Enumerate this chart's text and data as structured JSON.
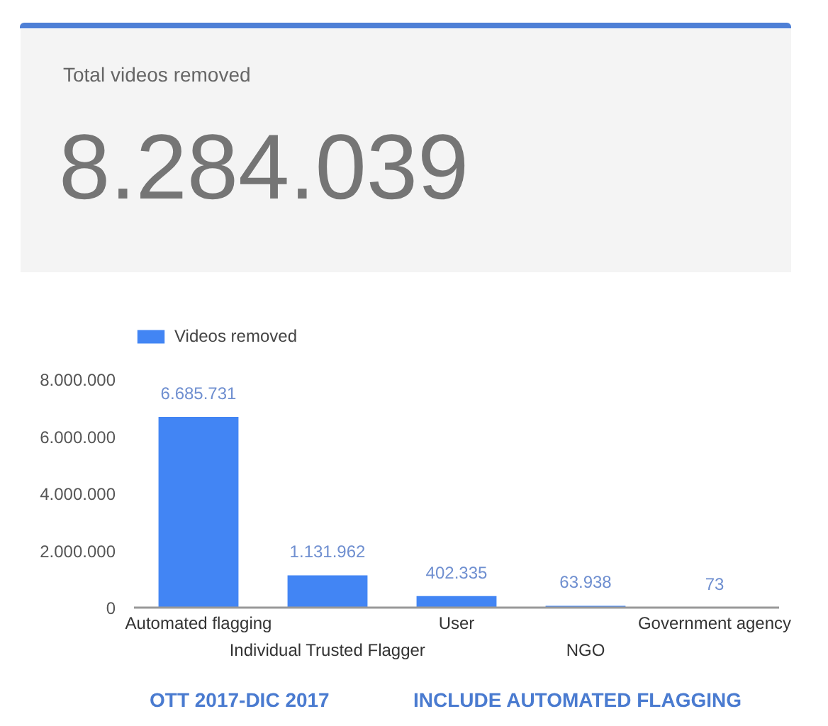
{
  "chart_data": [
    {
      "type": "other",
      "title": "Total videos removed",
      "annotations": [
        "8.284.039"
      ]
    },
    {
      "type": "bar",
      "categories": [
        "Automated flagging",
        "Individual Trusted Flagger",
        "User",
        "NGO",
        "Government agency"
      ],
      "series": [
        {
          "name": "Videos removed",
          "color": "#4285f4",
          "values": [
            6685731,
            1131962,
            402335,
            63938,
            73
          ],
          "value_labels": [
            "6.685.731",
            "1.131.962",
            "402.335",
            "63.938",
            "73"
          ]
        }
      ],
      "ylim": [
        0,
        8000000
      ],
      "yticks": [
        0,
        {
          "value": 2000000,
          "label": "2.000.000"
        },
        {
          "value": 4000000,
          "label": "4.000.000"
        },
        {
          "value": 6000000,
          "label": "6.000.000"
        },
        {
          "value": 8000000,
          "label": "8.000.000"
        }
      ],
      "legend": "top left",
      "annotations": [
        "OTT 2017-DIC 2017",
        "INCLUDE AUTOMATED FLAGGING"
      ]
    }
  ]
}
